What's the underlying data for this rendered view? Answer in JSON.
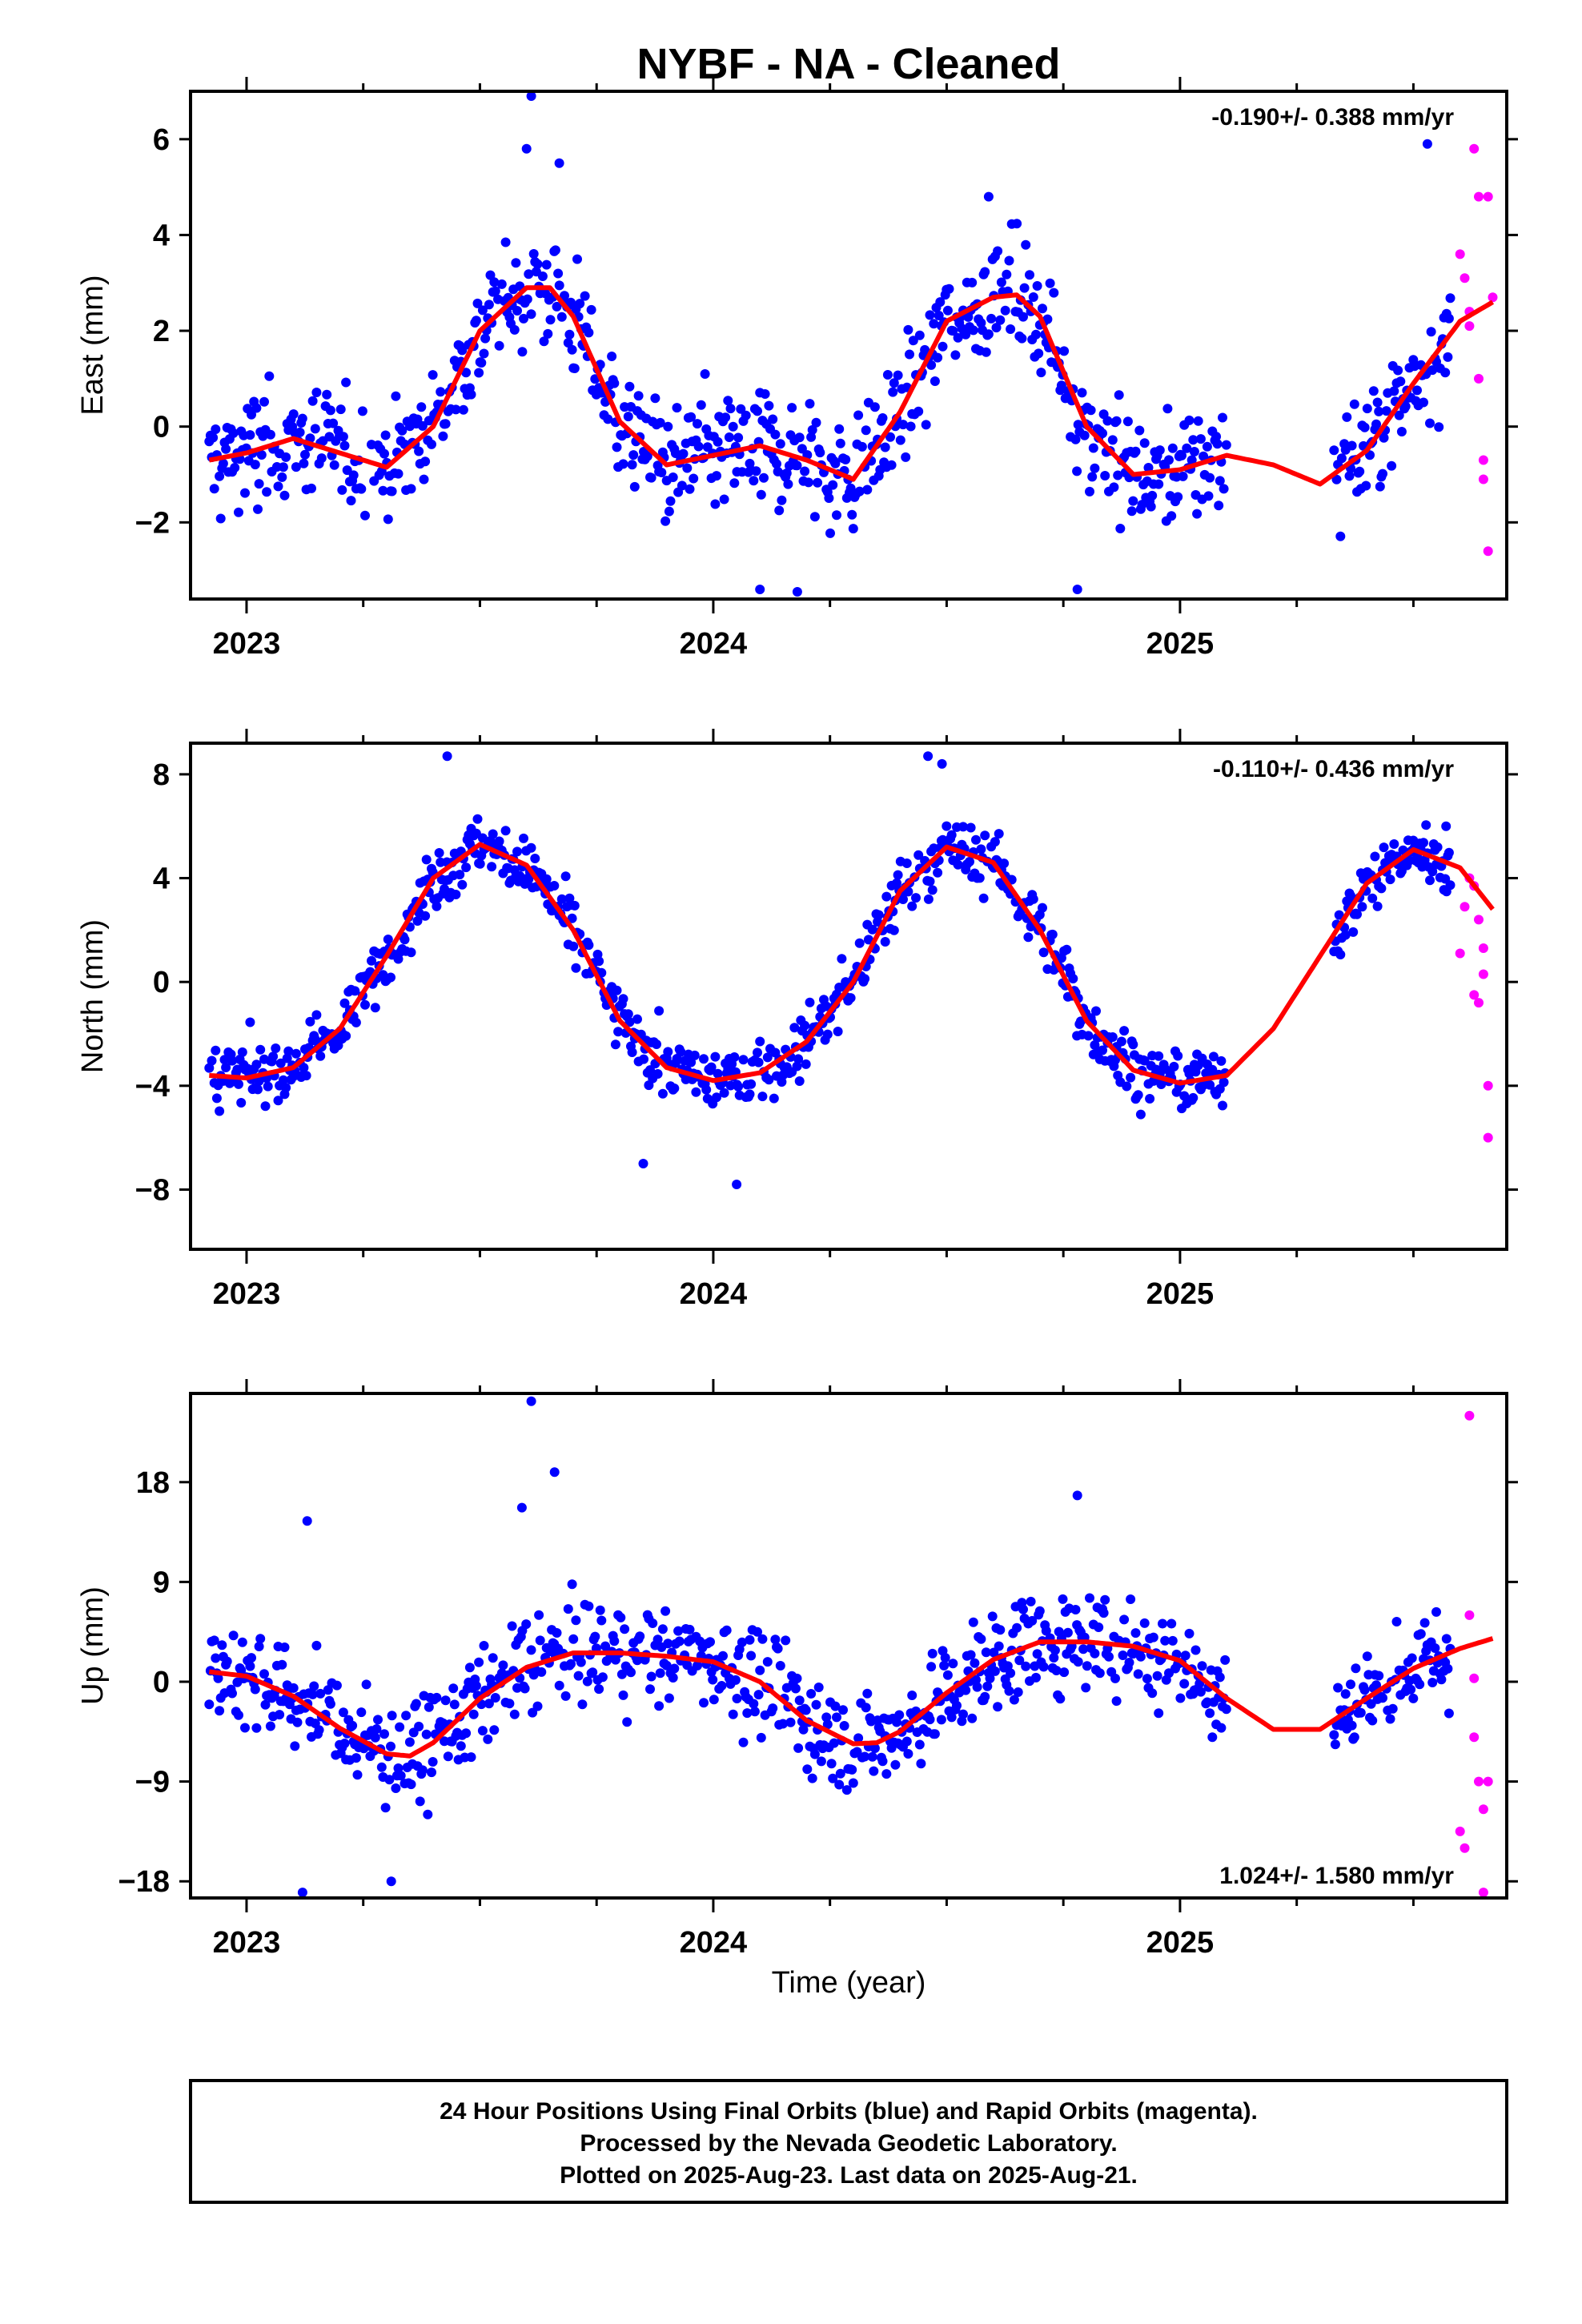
{
  "figure": {
    "title": "NYBF  - NA - Cleaned",
    "xlabel": "Time (year)",
    "footer_lines": [
      "24 Hour Positions Using Final Orbits (blue) and Rapid Orbits (magenta).",
      "Processed by the Nevada Geodetic Laboratory.",
      "Plotted on 2025-Aug-23. Last data on 2025-Aug-21."
    ]
  },
  "colors": {
    "final": "#0000ff",
    "rapid": "#ff00ff",
    "model": "#ff0000",
    "axis": "#000000"
  },
  "chart_data": [
    {
      "type": "scatter",
      "component": "east",
      "ylabel": "East (mm)",
      "rate_label": "-0.190+/- 0.388 mm/yr",
      "xlim": [
        2022.88,
        2025.7
      ],
      "ylim": [
        -3.6,
        7.0
      ],
      "xticks": [
        2023,
        2024,
        2025
      ],
      "xtick_labels": [
        "2023",
        "2024",
        "2025"
      ],
      "yticks": [
        -2,
        0,
        2,
        4,
        6
      ],
      "ytick_labels": [
        "−2",
        "0",
        "2",
        "4",
        "6"
      ],
      "model": {
        "x": [
          2022.92,
          2023.0,
          2023.1,
          2023.2,
          2023.3,
          2023.4,
          2023.5,
          2023.6,
          2023.65,
          2023.7,
          2023.8,
          2023.9,
          2024.0,
          2024.1,
          2024.2,
          2024.3,
          2024.4,
          2024.5,
          2024.6,
          2024.65,
          2024.7,
          2024.8,
          2024.9,
          2025.0,
          2025.1,
          2025.2,
          2025.3,
          2025.4,
          2025.5,
          2025.6,
          2025.67
        ],
        "y": [
          -0.7,
          -0.55,
          -0.25,
          -0.55,
          -0.85,
          0.0,
          2.0,
          2.9,
          2.9,
          2.3,
          0.1,
          -0.8,
          -0.6,
          -0.4,
          -0.7,
          -1.1,
          0.3,
          2.2,
          2.7,
          2.75,
          2.3,
          0.0,
          -1.0,
          -0.9,
          -0.6,
          -0.8,
          -1.2,
          -0.5,
          0.9,
          2.2,
          2.6
        ]
      },
      "final_points": {
        "segments": [
          [
            2022.92,
            2025.1
          ],
          [
            2025.33,
            2025.58
          ]
        ],
        "scatter_sd": 0.85,
        "outliers": [
          [
            2023.61,
            6.9
          ],
          [
            2023.6,
            5.8
          ],
          [
            2023.67,
            5.5
          ],
          [
            2024.1,
            -3.4
          ],
          [
            2024.18,
            -3.45
          ],
          [
            2024.78,
            -3.4
          ],
          [
            2025.53,
            5.9
          ],
          [
            2024.59,
            4.8
          ]
        ]
      },
      "rapid_points": {
        "x": [
          2025.6,
          2025.61,
          2025.62,
          2025.62,
          2025.63,
          2025.64,
          2025.64,
          2025.65,
          2025.65,
          2025.66,
          2025.66,
          2025.67
        ],
        "y": [
          3.6,
          3.1,
          2.4,
          2.1,
          5.8,
          4.8,
          1.0,
          -0.7,
          -1.1,
          -2.6,
          4.8,
          2.7
        ]
      }
    },
    {
      "type": "scatter",
      "component": "north",
      "ylabel": "North (mm)",
      "rate_label": "-0.110+/- 0.436 mm/yr",
      "xlim": [
        2022.88,
        2025.7
      ],
      "ylim": [
        -10.3,
        9.2
      ],
      "xticks": [
        2023,
        2024,
        2025
      ],
      "xtick_labels": [
        "2023",
        "2024",
        "2025"
      ],
      "yticks": [
        -8,
        -4,
        0,
        4,
        8
      ],
      "ytick_labels": [
        "−8",
        "−4",
        "0",
        "4",
        "8"
      ],
      "model": {
        "x": [
          2022.92,
          2023.0,
          2023.1,
          2023.2,
          2023.3,
          2023.4,
          2023.5,
          2023.6,
          2023.7,
          2023.8,
          2023.9,
          2024.0,
          2024.1,
          2024.2,
          2024.3,
          2024.4,
          2024.5,
          2024.6,
          2024.7,
          2024.8,
          2024.9,
          2025.0,
          2025.1,
          2025.2,
          2025.3,
          2025.4,
          2025.5,
          2025.6,
          2025.67
        ],
        "y": [
          -3.6,
          -3.7,
          -3.3,
          -1.8,
          1.0,
          4.0,
          5.3,
          4.5,
          2.0,
          -1.5,
          -3.3,
          -3.8,
          -3.5,
          -2.3,
          0.0,
          3.5,
          5.2,
          4.6,
          2.0,
          -1.5,
          -3.4,
          -3.9,
          -3.6,
          -1.8,
          1.0,
          3.8,
          5.1,
          4.4,
          2.8
        ]
      },
      "final_points": {
        "segments": [
          [
            2022.92,
            2025.1
          ],
          [
            2025.33,
            2025.58
          ]
        ],
        "scatter_sd": 0.85,
        "outliers": [
          [
            2024.05,
            -7.8
          ],
          [
            2023.85,
            -7.0
          ],
          [
            2023.43,
            8.7
          ],
          [
            2024.46,
            8.7
          ],
          [
            2024.49,
            8.4
          ],
          [
            2025.57,
            6.0
          ]
        ]
      },
      "rapid_points": {
        "x": [
          2025.6,
          2025.61,
          2025.62,
          2025.63,
          2025.63,
          2025.64,
          2025.64,
          2025.65,
          2025.65,
          2025.66,
          2025.66
        ],
        "y": [
          1.1,
          2.9,
          4.0,
          -0.5,
          3.7,
          -0.8,
          2.4,
          0.3,
          1.3,
          -4.0,
          -6.0
        ]
      }
    },
    {
      "type": "scatter",
      "component": "up",
      "ylabel": "Up (mm)",
      "rate_label": "1.024+/- 1.580 mm/yr",
      "xlim": [
        2022.88,
        2025.7
      ],
      "ylim": [
        -19.5,
        26.0
      ],
      "xticks": [
        2023,
        2024,
        2025
      ],
      "xtick_labels": [
        "2023",
        "2024",
        "2025"
      ],
      "yticks": [
        -18,
        -9,
        0,
        9,
        18
      ],
      "ytick_labels": [
        "−18",
        "−9",
        "0",
        "9",
        "18"
      ],
      "model": {
        "x": [
          2022.92,
          2023.0,
          2023.1,
          2023.2,
          2023.3,
          2023.35,
          2023.4,
          2023.5,
          2023.6,
          2023.7,
          2023.8,
          2023.9,
          2024.0,
          2024.1,
          2024.2,
          2024.3,
          2024.35,
          2024.4,
          2024.5,
          2024.6,
          2024.7,
          2024.8,
          2024.9,
          2025.0,
          2025.1,
          2025.2,
          2025.3,
          2025.4,
          2025.5,
          2025.6,
          2025.67
        ],
        "y": [
          0.9,
          0.5,
          -1.3,
          -4.2,
          -6.5,
          -6.7,
          -5.5,
          -1.5,
          1.3,
          2.6,
          2.6,
          2.3,
          1.8,
          0.0,
          -3.5,
          -5.6,
          -5.5,
          -4.5,
          -1.0,
          2.0,
          3.6,
          3.6,
          3.2,
          1.9,
          -1.5,
          -4.3,
          -4.3,
          -1.5,
          1.2,
          3.0,
          3.9
        ]
      },
      "final_points": {
        "segments": [
          [
            2022.92,
            2025.1
          ],
          [
            2025.33,
            2025.58
          ]
        ],
        "scatter_sd": 3.3,
        "outliers": [
          [
            2023.61,
            25.3
          ],
          [
            2023.66,
            18.9
          ],
          [
            2023.12,
            -19.0
          ],
          [
            2023.59,
            15.7
          ],
          [
            2024.78,
            16.8
          ],
          [
            2023.13,
            14.5
          ],
          [
            2023.31,
            -18.0
          ]
        ]
      },
      "rapid_points": {
        "x": [
          2025.6,
          2025.61,
          2025.62,
          2025.62,
          2025.63,
          2025.63,
          2025.64,
          2025.65,
          2025.65,
          2025.66
        ],
        "y": [
          -13.5,
          -15.0,
          6.0,
          24.0,
          0.3,
          -5.0,
          -9.0,
          -11.5,
          -19.0,
          -9.0
        ]
      }
    }
  ]
}
